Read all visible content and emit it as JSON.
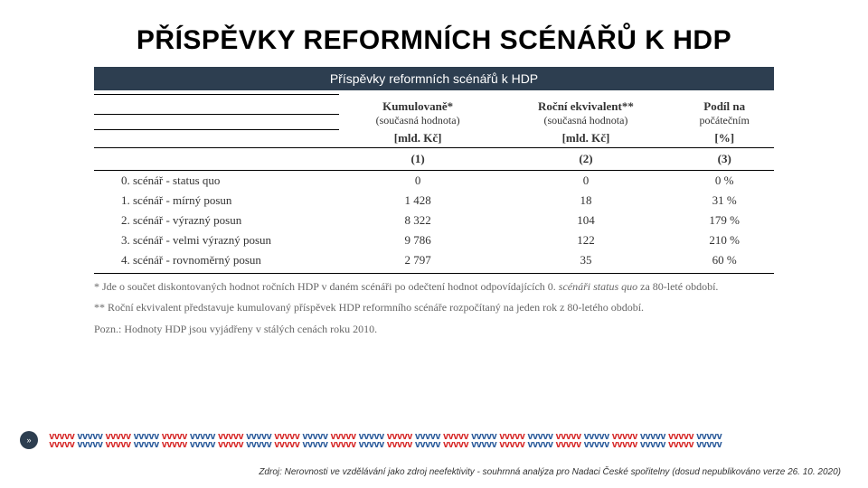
{
  "title": "PŘÍSPĚVKY REFORMNÍCH SCÉNÁŘŮ K HDP",
  "subtitle": "Příspěvky reformních scénářů k HDP",
  "table": {
    "headers": {
      "col1": {
        "line1": "Kumulovaně*",
        "line2": "(současná hodnota)",
        "unit": "[mld. Kč]",
        "num": "(1)"
      },
      "col2": {
        "line1": "Roční ekvivalent**",
        "line2": "(současná hodnota)",
        "unit": "[mld. Kč]",
        "num": "(2)"
      },
      "col3": {
        "line1": "Podíl na",
        "line2": "počátečním",
        "unit": "[%]",
        "num": "(3)"
      }
    },
    "rows": [
      {
        "label": "0. scénář - status quo",
        "c1": "0",
        "c2": "0",
        "c3": "0 %"
      },
      {
        "label": "1. scénář - mírný posun",
        "c1": "1 428",
        "c2": "18",
        "c3": "31 %"
      },
      {
        "label": "2. scénář - výrazný posun",
        "c1": "8 322",
        "c2": "104",
        "c3": "179 %"
      },
      {
        "label": "3. scénář - velmi výrazný posun",
        "c1": "9 786",
        "c2": "122",
        "c3": "210 %"
      },
      {
        "label": "4. scénář - rovnoměrný posun",
        "c1": "2 797",
        "c2": "35",
        "c3": "60 %"
      }
    ]
  },
  "footnotes": {
    "f1_a": "* Jde o součet diskontovaných hodnot ročních HDP v daném scénáři po odečtení hodnot odpovídajících 0. ",
    "f1_i": "scénáři status quo",
    "f1_b": " za 80-leté období.",
    "f2": "** Roční ekvivalent představuje kumulovaný příspěvek HDP reformního scénáře rozpočítaný na jeden rok z 80-letého období.",
    "f3": "Pozn.: Hodnoty HDP jsou vyjádřeny v stálých cenách roku 2010."
  },
  "slideNumber": "»",
  "source": "Zdroj: Nerovnosti ve vzdělávání jako zdroj neefektivity - souhrnná analýza pro Nadaci České spořitelny (dosud nepublikováno verze 26. 10. 2020)",
  "colors": {
    "subtitleBg": "#2d3e50",
    "zigRed": "#d62828",
    "zigBlue": "#2a5a9a"
  }
}
